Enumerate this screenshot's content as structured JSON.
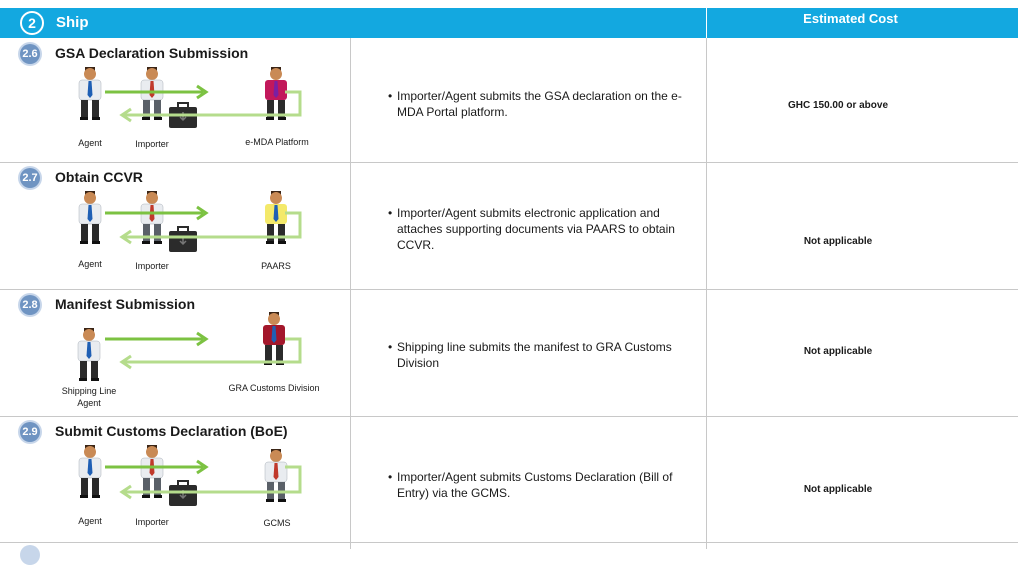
{
  "header": {
    "step_number": "2",
    "title": "Ship",
    "cost_header": "Estimated Cost"
  },
  "colors": {
    "header_bg": "#13a8e0",
    "badge": "#6f94c2",
    "arrow": "#7cc242",
    "grid": "#c8c8c8"
  },
  "steps": [
    {
      "number": "2.6",
      "title": "GSA Declaration Submission",
      "actors": [
        "Agent",
        "Importer",
        "e-MDA Platform"
      ],
      "description": "Importer/Agent submits the GSA declaration on the e-MDA Portal platform.",
      "cost": "GHC 150.00 or above"
    },
    {
      "number": "2.7",
      "title": "Obtain CCVR",
      "actors": [
        "Agent",
        "Importer",
        "PAARS"
      ],
      "description": "Importer/Agent submits electronic application and attaches supporting documents via PAARS to obtain CCVR.",
      "cost": "Not applicable"
    },
    {
      "number": "2.8",
      "title": "Manifest Submission",
      "actors": [
        "Shipping Line Agent",
        "GRA Customs Division"
      ],
      "description": "Shipping line submits the manifest to GRA Customs Division",
      "cost": "Not applicable"
    },
    {
      "number": "2.9",
      "title": "Submit Customs Declaration (BoE)",
      "actors": [
        "Agent",
        "Importer",
        "GCMS"
      ],
      "description": "Importer/Agent submits Customs Declaration (Bill of Entry) via the GCMS.",
      "cost": "Not applicable"
    }
  ]
}
